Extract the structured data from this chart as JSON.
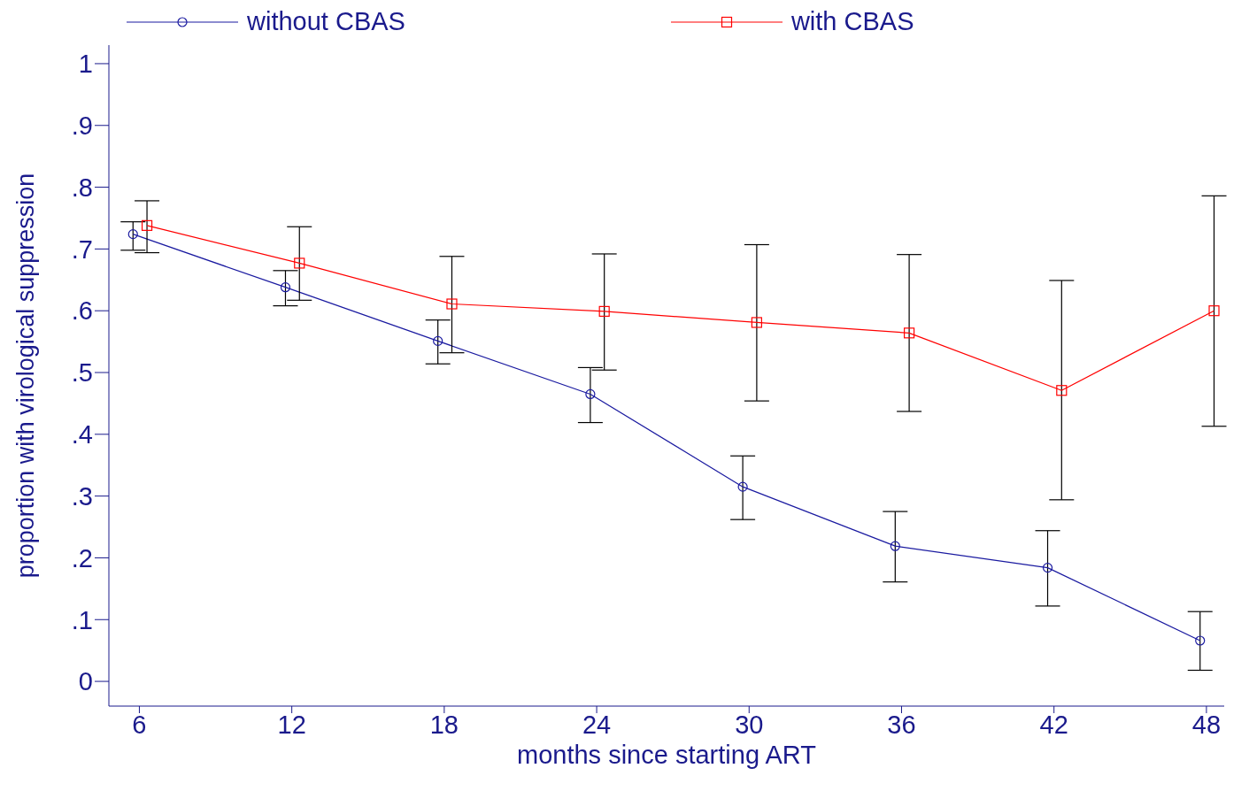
{
  "chart_data": {
    "type": "line",
    "xlabel": "months since starting ART",
    "ylabel": "proportion with virological suppression",
    "xlim": [
      4.8,
      48.7
    ],
    "xticks": [
      6,
      12,
      18,
      24,
      30,
      36,
      42,
      48
    ],
    "ylim": [
      -0.04,
      1.03
    ],
    "yticks": [
      {
        "value": 0,
        "label": "0"
      },
      {
        "value": 0.1,
        "label": ".1"
      },
      {
        "value": 0.2,
        "label": ".2"
      },
      {
        "value": 0.3,
        "label": ".3"
      },
      {
        "value": 0.4,
        "label": ".4"
      },
      {
        "value": 0.5,
        "label": ".5"
      },
      {
        "value": 0.6,
        "label": ".6"
      },
      {
        "value": 0.7,
        "label": ".7"
      },
      {
        "value": 0.8,
        "label": ".8"
      },
      {
        "value": 0.9,
        "label": ".9"
      },
      {
        "value": 1,
        "label": "1"
      }
    ],
    "grid": false,
    "legend": "top",
    "line_style": "solid",
    "series": [
      {
        "name": "without CBAS",
        "color": "#1a1aa0",
        "marker": "circle",
        "x": [
          5.75,
          11.75,
          17.75,
          23.75,
          29.75,
          35.75,
          41.75,
          47.75
        ],
        "values": [
          0.724,
          0.638,
          0.551,
          0.465,
          0.315,
          0.219,
          0.184,
          0.066
        ],
        "errors": [
          [
            0.698,
            0.744
          ],
          [
            0.608,
            0.665
          ],
          [
            0.514,
            0.585
          ],
          [
            0.419,
            0.508
          ],
          [
            0.262,
            0.365
          ],
          [
            0.161,
            0.275
          ],
          [
            0.122,
            0.244
          ],
          [
            0.018,
            0.113
          ]
        ]
      },
      {
        "name": "with CBAS",
        "color": "#ff0000",
        "marker": "square",
        "x": [
          6.3,
          12.3,
          18.3,
          24.3,
          30.3,
          36.3,
          42.3,
          48.3
        ],
        "values": [
          0.738,
          0.677,
          0.611,
          0.599,
          0.581,
          0.564,
          0.471,
          0.6
        ],
        "errors": [
          [
            0.694,
            0.778
          ],
          [
            0.617,
            0.736
          ],
          [
            0.532,
            0.688
          ],
          [
            0.504,
            0.692
          ],
          [
            0.454,
            0.707
          ],
          [
            0.437,
            0.691
          ],
          [
            0.294,
            0.649
          ],
          [
            0.413,
            0.786
          ]
        ]
      }
    ]
  }
}
